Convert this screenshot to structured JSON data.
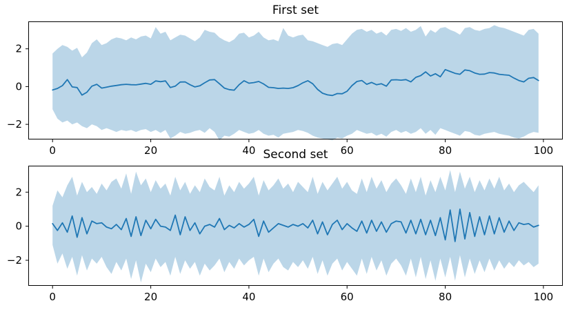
{
  "figure": {
    "background": "#ffffff",
    "line_color": "#1f77b4",
    "band_color": "#1f77b4",
    "band_opacity": 0.3,
    "spine_color": "#000000",
    "tick_color": "#000000"
  },
  "chart_data": [
    {
      "type": "line",
      "title": "First set",
      "description": "mean line with shaded error band",
      "grid": false,
      "legend": null,
      "xlim": [
        -4.95,
        103.95
      ],
      "ylim": [
        -2.8,
        3.45
      ],
      "x_ticks": [
        0,
        20,
        40,
        60,
        80,
        100
      ],
      "x_tick_labels": [
        "0",
        "20",
        "40",
        "60",
        "80",
        "100"
      ],
      "y_ticks": [
        -2,
        0,
        2
      ],
      "y_tick_labels": [
        "−2",
        "0",
        "2"
      ],
      "x": [
        0,
        1,
        2,
        3,
        4,
        5,
        6,
        7,
        8,
        9,
        10,
        11,
        12,
        13,
        14,
        15,
        16,
        17,
        18,
        19,
        20,
        21,
        22,
        23,
        24,
        25,
        26,
        27,
        28,
        29,
        30,
        31,
        32,
        33,
        34,
        35,
        36,
        37,
        38,
        39,
        40,
        41,
        42,
        43,
        44,
        45,
        46,
        47,
        48,
        49,
        50,
        51,
        52,
        53,
        54,
        55,
        56,
        57,
        58,
        59,
        60,
        61,
        62,
        63,
        64,
        65,
        66,
        67,
        68,
        69,
        70,
        71,
        72,
        73,
        74,
        75,
        76,
        77,
        78,
        79,
        80,
        81,
        82,
        83,
        84,
        85,
        86,
        87,
        88,
        89,
        90,
        91,
        92,
        93,
        94,
        95,
        96,
        97,
        98,
        99
      ],
      "series": [
        {
          "name": "mean",
          "values": [
            -0.18,
            -0.1,
            0.05,
            0.37,
            -0.02,
            -0.05,
            -0.45,
            -0.3,
            0.02,
            0.12,
            -0.08,
            -0.03,
            0.02,
            0.06,
            0.1,
            0.12,
            0.1,
            0.09,
            0.13,
            0.17,
            0.12,
            0.3,
            0.26,
            0.3,
            -0.05,
            0.02,
            0.24,
            0.25,
            0.1,
            -0.02,
            0.04,
            0.2,
            0.35,
            0.37,
            0.15,
            -0.08,
            -0.16,
            -0.19,
            0.1,
            0.31,
            0.18,
            0.21,
            0.27,
            0.14,
            -0.04,
            -0.06,
            -0.1,
            -0.08,
            -0.1,
            -0.06,
            0.05,
            0.2,
            0.31,
            0.15,
            -0.15,
            -0.35,
            -0.44,
            -0.47,
            -0.37,
            -0.38,
            -0.25,
            0.05,
            0.27,
            0.32,
            0.12,
            0.22,
            0.1,
            0.15,
            0.02,
            0.35,
            0.36,
            0.34,
            0.37,
            0.25,
            0.49,
            0.58,
            0.78,
            0.56,
            0.68,
            0.52,
            0.9,
            0.8,
            0.7,
            0.65,
            0.88,
            0.84,
            0.72,
            0.65,
            0.66,
            0.74,
            0.72,
            0.65,
            0.62,
            0.6,
            0.45,
            0.32,
            0.25,
            0.44,
            0.48,
            0.32
          ]
        },
        {
          "name": "upper",
          "values": [
            1.75,
            2.0,
            2.2,
            2.1,
            1.9,
            2.05,
            1.55,
            1.8,
            2.3,
            2.5,
            2.2,
            2.3,
            2.5,
            2.6,
            2.55,
            2.45,
            2.6,
            2.5,
            2.65,
            2.7,
            2.55,
            3.15,
            2.8,
            2.9,
            2.45,
            2.6,
            2.75,
            2.7,
            2.55,
            2.4,
            2.6,
            3.0,
            2.9,
            2.85,
            2.6,
            2.45,
            2.35,
            2.5,
            2.8,
            2.85,
            2.6,
            2.7,
            2.9,
            2.6,
            2.45,
            2.5,
            2.4,
            3.1,
            2.7,
            2.6,
            2.7,
            2.75,
            2.45,
            2.4,
            2.3,
            2.2,
            2.1,
            2.25,
            2.3,
            2.2,
            2.5,
            2.8,
            3.0,
            3.05,
            2.9,
            3.0,
            2.8,
            2.9,
            2.7,
            3.0,
            3.05,
            2.95,
            3.1,
            2.9,
            3.0,
            3.2,
            2.65,
            3.0,
            2.85,
            3.1,
            3.15,
            3.0,
            2.9,
            2.75,
            3.1,
            3.15,
            3.0,
            2.95,
            3.05,
            3.1,
            3.25,
            3.15,
            3.1,
            3.0,
            2.9,
            2.8,
            2.7,
            3.0,
            3.05,
            2.8
          ]
        },
        {
          "name": "lower",
          "values": [
            -1.2,
            -1.7,
            -1.9,
            -1.8,
            -2.0,
            -1.9,
            -2.1,
            -2.2,
            -2.0,
            -2.1,
            -2.3,
            -2.2,
            -2.3,
            -2.4,
            -2.3,
            -2.35,
            -2.3,
            -2.4,
            -2.3,
            -2.25,
            -2.4,
            -2.3,
            -2.45,
            -2.3,
            -2.75,
            -2.6,
            -2.4,
            -2.5,
            -2.45,
            -2.35,
            -2.3,
            -2.45,
            -2.2,
            -2.4,
            -2.85,
            -2.6,
            -2.65,
            -2.5,
            -2.3,
            -2.4,
            -2.5,
            -2.45,
            -2.3,
            -2.5,
            -2.6,
            -2.55,
            -2.7,
            -2.5,
            -2.45,
            -2.4,
            -2.3,
            -2.35,
            -2.45,
            -2.6,
            -2.7,
            -2.75,
            -2.8,
            -2.85,
            -2.7,
            -2.75,
            -2.6,
            -2.5,
            -2.3,
            -2.4,
            -2.5,
            -2.45,
            -2.6,
            -2.5,
            -2.65,
            -2.4,
            -2.3,
            -2.45,
            -2.35,
            -2.5,
            -2.4,
            -2.2,
            -2.5,
            -2.3,
            -2.55,
            -2.2,
            -2.3,
            -2.4,
            -2.5,
            -2.6,
            -2.35,
            -2.4,
            -2.55,
            -2.6,
            -2.5,
            -2.45,
            -2.4,
            -2.5,
            -2.55,
            -2.6,
            -2.7,
            -2.75,
            -2.65,
            -2.5,
            -2.4,
            -2.45
          ]
        }
      ]
    },
    {
      "type": "line",
      "title": "Second set",
      "description": "noisy mean line with spiky shaded error band",
      "grid": false,
      "legend": null,
      "xlim": [
        -4.95,
        103.95
      ],
      "ylim": [
        -3.5,
        3.55
      ],
      "x_ticks": [
        0,
        20,
        40,
        60,
        80,
        100
      ],
      "x_tick_labels": [
        "0",
        "20",
        "40",
        "60",
        "80",
        "100"
      ],
      "y_ticks": [
        -2,
        0,
        2
      ],
      "y_tick_labels": [
        "−2",
        "0",
        "2"
      ],
      "x": [
        0,
        1,
        2,
        3,
        4,
        5,
        6,
        7,
        8,
        9,
        10,
        11,
        12,
        13,
        14,
        15,
        16,
        17,
        18,
        19,
        20,
        21,
        22,
        23,
        24,
        25,
        26,
        27,
        28,
        29,
        30,
        31,
        32,
        33,
        34,
        35,
        36,
        37,
        38,
        39,
        40,
        41,
        42,
        43,
        44,
        45,
        46,
        47,
        48,
        49,
        50,
        51,
        52,
        53,
        54,
        55,
        56,
        57,
        58,
        59,
        60,
        61,
        62,
        63,
        64,
        65,
        66,
        67,
        68,
        69,
        70,
        71,
        72,
        73,
        74,
        75,
        76,
        77,
        78,
        79,
        80,
        81,
        82,
        83,
        84,
        85,
        86,
        87,
        88,
        89,
        90,
        91,
        92,
        93,
        94,
        95,
        96,
        97,
        98,
        99
      ],
      "series": [
        {
          "name": "mean",
          "values": [
            0.15,
            -0.25,
            0.2,
            -0.35,
            0.6,
            -0.65,
            0.5,
            -0.45,
            0.3,
            0.15,
            0.2,
            -0.05,
            -0.15,
            0.1,
            -0.2,
            0.45,
            -0.6,
            0.55,
            -0.55,
            0.35,
            -0.15,
            0.4,
            0.0,
            -0.05,
            -0.25,
            0.65,
            -0.5,
            0.55,
            -0.25,
            0.2,
            -0.45,
            0.0,
            0.1,
            -0.05,
            0.45,
            -0.2,
            0.05,
            -0.1,
            0.15,
            -0.05,
            0.1,
            0.4,
            -0.6,
            0.3,
            -0.35,
            -0.1,
            0.15,
            0.05,
            -0.05,
            0.1,
            0.0,
            0.15,
            -0.1,
            0.35,
            -0.45,
            0.25,
            -0.5,
            0.1,
            0.35,
            -0.2,
            0.15,
            -0.1,
            -0.3,
            0.3,
            -0.4,
            0.35,
            -0.3,
            0.25,
            -0.35,
            0.15,
            0.3,
            0.25,
            -0.4,
            0.35,
            -0.45,
            0.4,
            -0.5,
            0.35,
            -0.55,
            0.5,
            -0.8,
            0.95,
            -0.9,
            1.0,
            -0.75,
            0.8,
            -0.6,
            0.55,
            -0.5,
            0.6,
            -0.45,
            0.5,
            -0.35,
            0.3,
            -0.25,
            0.2,
            0.1,
            0.15,
            -0.05,
            0.05
          ]
        },
        {
          "name": "upper",
          "values": [
            1.2,
            2.1,
            1.7,
            2.4,
            2.9,
            1.8,
            2.6,
            2.0,
            2.3,
            1.9,
            2.5,
            2.1,
            2.6,
            2.8,
            2.2,
            3.1,
            1.9,
            3.2,
            2.4,
            2.8,
            2.0,
            2.7,
            2.2,
            2.5,
            1.8,
            2.9,
            2.1,
            2.6,
            1.9,
            2.4,
            2.0,
            2.8,
            2.3,
            2.1,
            2.9,
            1.8,
            2.4,
            2.0,
            2.6,
            2.2,
            2.5,
            2.9,
            1.8,
            2.7,
            2.1,
            2.4,
            2.8,
            2.2,
            2.5,
            2.0,
            2.6,
            2.3,
            2.0,
            2.9,
            1.9,
            2.6,
            2.1,
            2.5,
            2.9,
            2.2,
            2.6,
            2.1,
            1.9,
            2.8,
            2.0,
            2.9,
            2.2,
            2.7,
            2.0,
            2.5,
            2.8,
            2.4,
            1.9,
            2.8,
            2.0,
            2.9,
            1.8,
            2.7,
            2.0,
            2.9,
            2.1,
            3.3,
            2.0,
            3.2,
            2.2,
            2.9,
            2.0,
            2.7,
            2.1,
            2.8,
            2.2,
            2.9,
            2.1,
            2.5,
            2.0,
            2.4,
            2.6,
            2.3,
            2.0,
            2.4
          ]
        },
        {
          "name": "lower",
          "values": [
            -1.1,
            -2.2,
            -1.6,
            -2.5,
            -1.8,
            -2.9,
            -1.7,
            -2.6,
            -1.9,
            -2.2,
            -1.8,
            -2.4,
            -2.8,
            -2.1,
            -2.6,
            -1.9,
            -3.1,
            -2.0,
            -3.3,
            -2.2,
            -2.7,
            -1.9,
            -2.4,
            -2.1,
            -2.9,
            -1.8,
            -2.8,
            -2.0,
            -2.5,
            -2.1,
            -2.9,
            -2.2,
            -2.6,
            -2.3,
            -1.9,
            -2.7,
            -2.1,
            -2.5,
            -1.9,
            -2.3,
            -2.0,
            -1.8,
            -2.9,
            -1.9,
            -2.7,
            -2.2,
            -1.9,
            -2.4,
            -2.6,
            -2.1,
            -2.4,
            -2.0,
            -2.5,
            -1.8,
            -2.8,
            -2.0,
            -2.9,
            -2.2,
            -1.9,
            -2.6,
            -2.1,
            -2.5,
            -2.9,
            -1.9,
            -2.8,
            -1.8,
            -2.6,
            -2.0,
            -2.9,
            -2.2,
            -1.9,
            -2.3,
            -2.9,
            -1.9,
            -3.0,
            -1.8,
            -3.1,
            -2.0,
            -3.2,
            -1.9,
            -3.0,
            -1.8,
            -3.2,
            -1.7,
            -3.0,
            -1.9,
            -2.8,
            -2.0,
            -2.7,
            -1.9,
            -2.6,
            -2.0,
            -2.5,
            -2.1,
            -2.4,
            -2.0,
            -2.3,
            -2.1,
            -2.4,
            -2.2
          ]
        }
      ]
    }
  ]
}
